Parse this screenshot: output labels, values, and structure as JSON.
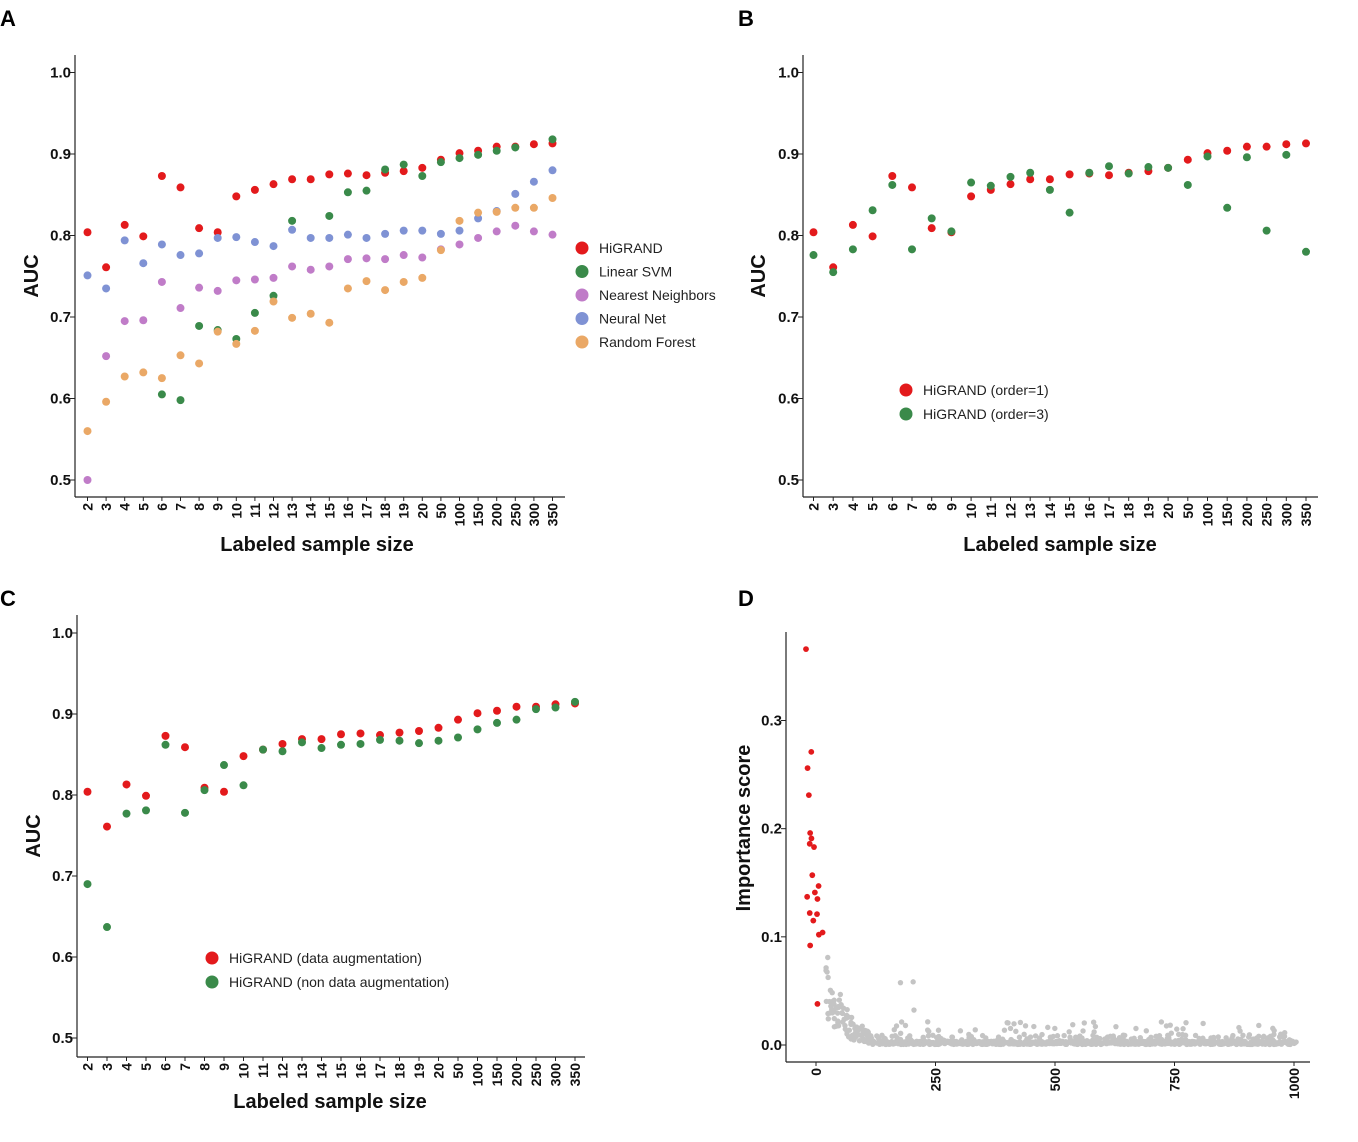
{
  "colors": {
    "red": "#e31a1c",
    "green": "#3a8a4a",
    "purple": "#c07cc8",
    "blue": "#7f92d4",
    "orange": "#eaa866",
    "grey": "#c4c4c4"
  },
  "chart_data": [
    {
      "panel": "A",
      "type": "scatter",
      "xlabel": "Labeled sample size",
      "ylabel": "AUC",
      "ylim": [
        0.5,
        1.0
      ],
      "yticks": [
        "0.5",
        "0.6",
        "0.7",
        "0.8",
        "0.9",
        "1.0"
      ],
      "categories": [
        "2",
        "3",
        "4",
        "5",
        "6",
        "7",
        "8",
        "9",
        "10",
        "11",
        "12",
        "13",
        "14",
        "15",
        "16",
        "17",
        "18",
        "19",
        "20",
        "50",
        "100",
        "150",
        "200",
        "250",
        "300",
        "350"
      ],
      "legend_position": "right",
      "series": [
        {
          "name": "HiGRAND",
          "color": "#e31a1c",
          "values": [
            0.804,
            0.761,
            0.813,
            0.799,
            0.873,
            0.859,
            0.809,
            0.804,
            0.848,
            0.856,
            0.863,
            0.869,
            0.869,
            0.875,
            0.876,
            0.874,
            0.877,
            0.879,
            0.883,
            0.893,
            0.901,
            0.904,
            0.909,
            0.909,
            0.912,
            0.913
          ]
        },
        {
          "name": "Linear SVM",
          "color": "#3a8a4a",
          "values": [
            null,
            null,
            null,
            null,
            0.605,
            0.598,
            0.689,
            0.684,
            0.673,
            0.705,
            0.726,
            0.818,
            null,
            0.824,
            0.853,
            0.855,
            0.881,
            0.887,
            0.873,
            0.89,
            0.895,
            0.899,
            0.904,
            0.908,
            null,
            0.918
          ]
        },
        {
          "name": "Nearest Neighbors",
          "color": "#c07cc8",
          "values": [
            0.5,
            0.652,
            0.695,
            0.696,
            0.743,
            0.711,
            0.736,
            0.732,
            0.745,
            0.746,
            0.748,
            0.762,
            0.758,
            0.762,
            0.771,
            0.772,
            0.771,
            0.776,
            0.773,
            0.783,
            0.789,
            0.797,
            0.805,
            0.812,
            0.805,
            0.801
          ]
        },
        {
          "name": "Neural Net",
          "color": "#7f92d4",
          "values": [
            0.751,
            0.735,
            0.794,
            0.766,
            0.789,
            0.776,
            0.778,
            0.797,
            0.798,
            0.792,
            0.787,
            0.807,
            0.797,
            0.797,
            0.801,
            0.797,
            0.802,
            0.806,
            0.806,
            0.802,
            0.806,
            0.821,
            0.83,
            0.851,
            0.866,
            0.88
          ]
        },
        {
          "name": "Random Forest",
          "color": "#eaa866",
          "values": [
            0.56,
            0.596,
            0.627,
            0.632,
            0.625,
            0.653,
            0.643,
            0.682,
            0.667,
            0.683,
            0.719,
            0.699,
            0.704,
            0.693,
            0.735,
            0.744,
            0.733,
            0.743,
            0.748,
            0.782,
            0.818,
            0.828,
            0.829,
            0.834,
            0.834,
            0.846
          ]
        }
      ]
    },
    {
      "panel": "B",
      "type": "scatter",
      "xlabel": "Labeled sample size",
      "ylabel": "AUC",
      "ylim": [
        0.5,
        1.0
      ],
      "yticks": [
        "0.5",
        "0.6",
        "0.7",
        "0.8",
        "0.9",
        "1.0"
      ],
      "categories": [
        "2",
        "3",
        "4",
        "5",
        "6",
        "7",
        "8",
        "9",
        "10",
        "11",
        "12",
        "13",
        "14",
        "15",
        "16",
        "17",
        "18",
        "19",
        "20",
        "50",
        "100",
        "150",
        "200",
        "250",
        "300",
        "350"
      ],
      "legend_position": "center-left",
      "series": [
        {
          "name": "HiGRAND (order=1)",
          "color": "#e31a1c",
          "values": [
            0.804,
            0.761,
            0.813,
            0.799,
            0.873,
            0.859,
            0.809,
            0.804,
            0.848,
            0.856,
            0.863,
            0.869,
            0.869,
            0.875,
            0.876,
            0.874,
            0.877,
            0.879,
            0.883,
            0.893,
            0.901,
            0.904,
            0.909,
            0.909,
            0.912,
            0.913
          ]
        },
        {
          "name": "HiGRAND (order=3)",
          "color": "#3a8a4a",
          "values": [
            0.776,
            0.755,
            0.783,
            0.831,
            0.862,
            0.783,
            0.821,
            0.805,
            0.865,
            0.861,
            0.872,
            0.877,
            0.856,
            0.828,
            0.877,
            0.885,
            0.876,
            0.884,
            0.883,
            0.862,
            0.897,
            0.834,
            0.896,
            0.806,
            0.899,
            0.78
          ]
        }
      ]
    },
    {
      "panel": "C",
      "type": "scatter",
      "xlabel": "Labeled sample size",
      "ylabel": "AUC",
      "ylim": [
        0.5,
        1.0
      ],
      "yticks": [
        "0.5",
        "0.6",
        "0.7",
        "0.8",
        "0.9",
        "1.0"
      ],
      "categories": [
        "2",
        "3",
        "4",
        "5",
        "6",
        "7",
        "8",
        "9",
        "10",
        "11",
        "12",
        "13",
        "14",
        "15",
        "16",
        "17",
        "18",
        "19",
        "20",
        "50",
        "100",
        "150",
        "200",
        "250",
        "300",
        "350"
      ],
      "legend_position": "center",
      "series": [
        {
          "name": "HiGRAND (data augmentation)",
          "color": "#e31a1c",
          "values": [
            0.804,
            0.761,
            0.813,
            0.799,
            0.873,
            0.859,
            0.809,
            0.804,
            0.848,
            0.856,
            0.863,
            0.869,
            0.869,
            0.875,
            0.876,
            0.874,
            0.877,
            0.879,
            0.883,
            0.893,
            0.901,
            0.904,
            0.909,
            0.909,
            0.912,
            0.913
          ]
        },
        {
          "name": "HiGRAND (non data augmentation)",
          "color": "#3a8a4a",
          "values": [
            0.69,
            0.637,
            0.777,
            0.781,
            0.862,
            0.778,
            0.806,
            0.837,
            0.812,
            0.856,
            0.854,
            0.865,
            0.858,
            0.862,
            0.863,
            0.868,
            0.867,
            0.864,
            0.867,
            0.871,
            0.881,
            0.889,
            0.893,
            0.906,
            0.908,
            0.915
          ]
        }
      ]
    },
    {
      "panel": "D",
      "type": "scatter",
      "xlabel": "",
      "ylabel": "Importance score",
      "ylim": [
        -0.012,
        0.38
      ],
      "xlim": [
        -20,
        1020
      ],
      "yticks": [
        "0.0",
        "0.1",
        "0.2",
        "0.3"
      ],
      "xticks": [
        "0",
        "250",
        "500",
        "750",
        "1000"
      ],
      "highlight": {
        "x": [
          0,
          1,
          2,
          3,
          4,
          5,
          6,
          7,
          8,
          9,
          10,
          11,
          12,
          13,
          14,
          15,
          16,
          17,
          18,
          19
        ],
        "y": [
          0.366,
          0.271,
          0.256,
          0.231,
          0.196,
          0.191,
          0.186,
          0.183,
          0.157,
          0.147,
          0.141,
          0.137,
          0.135,
          0.122,
          0.121,
          0.115,
          0.104,
          0.102,
          0.092,
          0.038
        ]
      },
      "background": {
        "count": 980,
        "max_rank": 1000,
        "note": "remaining scores mostly between 0.0 and 0.09"
      }
    }
  ]
}
